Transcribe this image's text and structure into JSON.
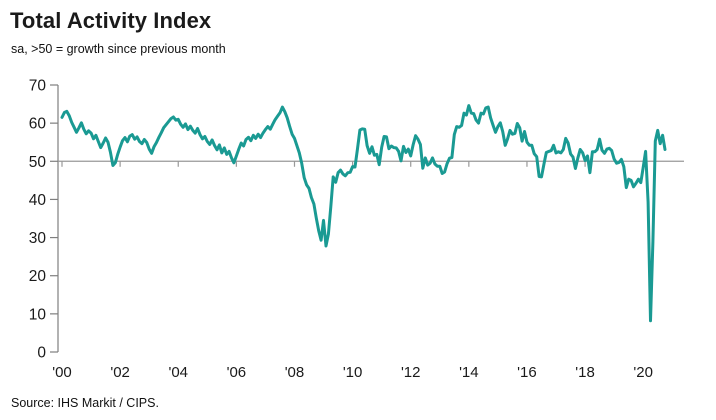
{
  "page": {
    "title": "Total Activity Index",
    "subtitle": "sa, >50 = growth since previous month",
    "source": "Source: IHS Markit / CIPS."
  },
  "chart_data": {
    "type": "line",
    "title": "Total Activity Index",
    "subtitle": "sa, >50 = growth since previous month",
    "source": "Source: IHS Markit / CIPS.",
    "series_name": "Total Activity Index (UK, monthly, seasonally adjusted)",
    "frequency": "monthly",
    "x_start": "2000-01",
    "x_end": "2020-10",
    "ylim": [
      0,
      70
    ],
    "reference_line": 50,
    "grid": "off",
    "legend": "none",
    "y_ticks": [
      0,
      10,
      20,
      30,
      40,
      50,
      60,
      70
    ],
    "x_tick_labels": [
      "'00",
      "'02",
      "'04",
      "'06",
      "'08",
      "'10",
      "'12",
      "'14",
      "'16",
      "'18",
      "'20"
    ],
    "x_tick_months": [
      0,
      24,
      48,
      72,
      96,
      120,
      144,
      168,
      192,
      216,
      240
    ],
    "colors": {
      "line": "#1a9a93",
      "reference_line": "#999999",
      "axis": "#7f7f7f",
      "text": "#1a1a1a"
    },
    "values": [
      61.5,
      62.8,
      63.1,
      61.9,
      60.2,
      58.9,
      57.6,
      58.8,
      60.1,
      58.4,
      57.2,
      58.0,
      57.4,
      55.9,
      56.8,
      55.2,
      53.6,
      54.8,
      56.1,
      55.0,
      52.4,
      48.9,
      49.6,
      51.8,
      53.7,
      55.4,
      56.2,
      55.1,
      56.6,
      57.0,
      55.8,
      56.4,
      55.2,
      54.6,
      55.7,
      54.9,
      53.2,
      52.1,
      53.8,
      54.9,
      56.3,
      57.5,
      58.8,
      59.6,
      60.4,
      61.2,
      61.6,
      60.8,
      61.0,
      59.7,
      58.9,
      59.8,
      58.3,
      59.2,
      58.1,
      57.4,
      58.6,
      57.0,
      55.9,
      56.5,
      55.2,
      54.4,
      55.6,
      54.1,
      53.0,
      54.3,
      52.2,
      53.5,
      51.8,
      52.6,
      50.9,
      49.6,
      51.4,
      53.2,
      54.8,
      54.0,
      55.7,
      56.3,
      55.4,
      56.8,
      56.0,
      57.1,
      56.2,
      57.4,
      58.3,
      59.1,
      58.4,
      59.7,
      60.9,
      61.8,
      62.7,
      64.2,
      63.0,
      61.4,
      59.2,
      57.1,
      56.0,
      54.1,
      52.2,
      49.5,
      45.7,
      43.8,
      42.9,
      40.5,
      38.8,
      35.1,
      31.8,
      29.3,
      34.5,
      27.8,
      30.9,
      38.1,
      45.9,
      44.5,
      47.0,
      47.7,
      46.7,
      46.2,
      47.0,
      47.1,
      48.6,
      48.5,
      53.1,
      58.2,
      58.5,
      58.4,
      54.1,
      52.1,
      53.8,
      51.6,
      51.8,
      49.1,
      53.7,
      56.5,
      56.4,
      53.3,
      54.0,
      53.6,
      53.5,
      52.6,
      50.1,
      53.9,
      52.3,
      53.2,
      51.4,
      54.3,
      56.7,
      55.8,
      54.4,
      48.2,
      50.9,
      49.0,
      49.5,
      50.9,
      49.3,
      48.7,
      48.7,
      46.8,
      47.2,
      49.4,
      50.8,
      51.0,
      57.0,
      59.1,
      58.9,
      59.4,
      62.6,
      62.1,
      64.6,
      62.6,
      62.5,
      60.8,
      60.0,
      62.6,
      62.4,
      64.0,
      64.2,
      61.4,
      59.4,
      57.6,
      59.1,
      60.1,
      57.8,
      54.2,
      55.9,
      58.1,
      57.1,
      57.3,
      59.9,
      58.8,
      55.3,
      57.8,
      55.0,
      54.2,
      54.2,
      52.0,
      51.2,
      46.0,
      45.9,
      49.2,
      52.3,
      52.6,
      52.8,
      54.2,
      52.2,
      52.5,
      52.2,
      53.1,
      56.0,
      54.8,
      51.9,
      51.1,
      48.1,
      50.8,
      53.1,
      52.2,
      50.2,
      51.4,
      47.0,
      52.5,
      52.5,
      53.1,
      55.8,
      52.9,
      52.1,
      53.2,
      53.4,
      52.8,
      50.6,
      49.5,
      49.7,
      50.5,
      48.6,
      43.1,
      45.3,
      45.0,
      43.3,
      44.2,
      45.3,
      44.4,
      48.4,
      52.6,
      39.3,
      8.2,
      28.9,
      55.3,
      58.1,
      54.6,
      56.8,
      53.1
    ]
  }
}
